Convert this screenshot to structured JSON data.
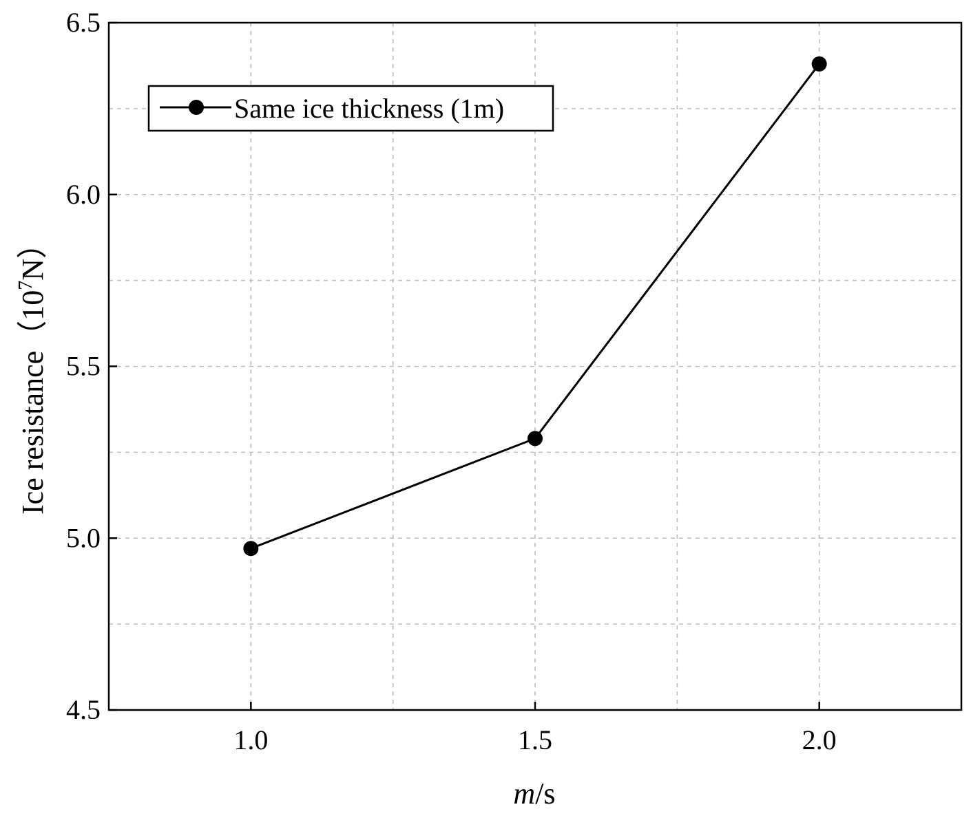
{
  "chart_data": {
    "type": "line",
    "title": "",
    "xlabel": "m/s",
    "xlabel_parts": {
      "italic": "m",
      "rest": "/s"
    },
    "ylabel_parts": {
      "before": "Ice resistance（10",
      "sup": "7",
      "after": "N）"
    },
    "x": [
      1.0,
      1.5,
      2.0
    ],
    "xlim": [
      0.75,
      2.25
    ],
    "ylim": [
      4.5,
      6.5
    ],
    "x_ticks": [
      1.0,
      1.5,
      2.0
    ],
    "x_tick_labels": [
      "1.0",
      "1.5",
      "2.0"
    ],
    "y_ticks": [
      4.5,
      5.0,
      5.5,
      6.0,
      6.5
    ],
    "y_tick_labels": [
      "4.5",
      "5.0",
      "5.5",
      "6.0",
      "6.5"
    ],
    "x_grid": [
      1.0,
      1.25,
      1.5,
      1.75,
      2.0
    ],
    "y_grid": [
      4.75,
      5.0,
      5.25,
      5.5,
      5.75,
      6.0,
      6.25
    ],
    "grid": true,
    "legend_position": "top-left",
    "series": [
      {
        "name": "Same ice thickness (1m)",
        "values": [
          4.97,
          5.29,
          6.38
        ],
        "color": "#000000",
        "marker": "circle"
      }
    ]
  }
}
